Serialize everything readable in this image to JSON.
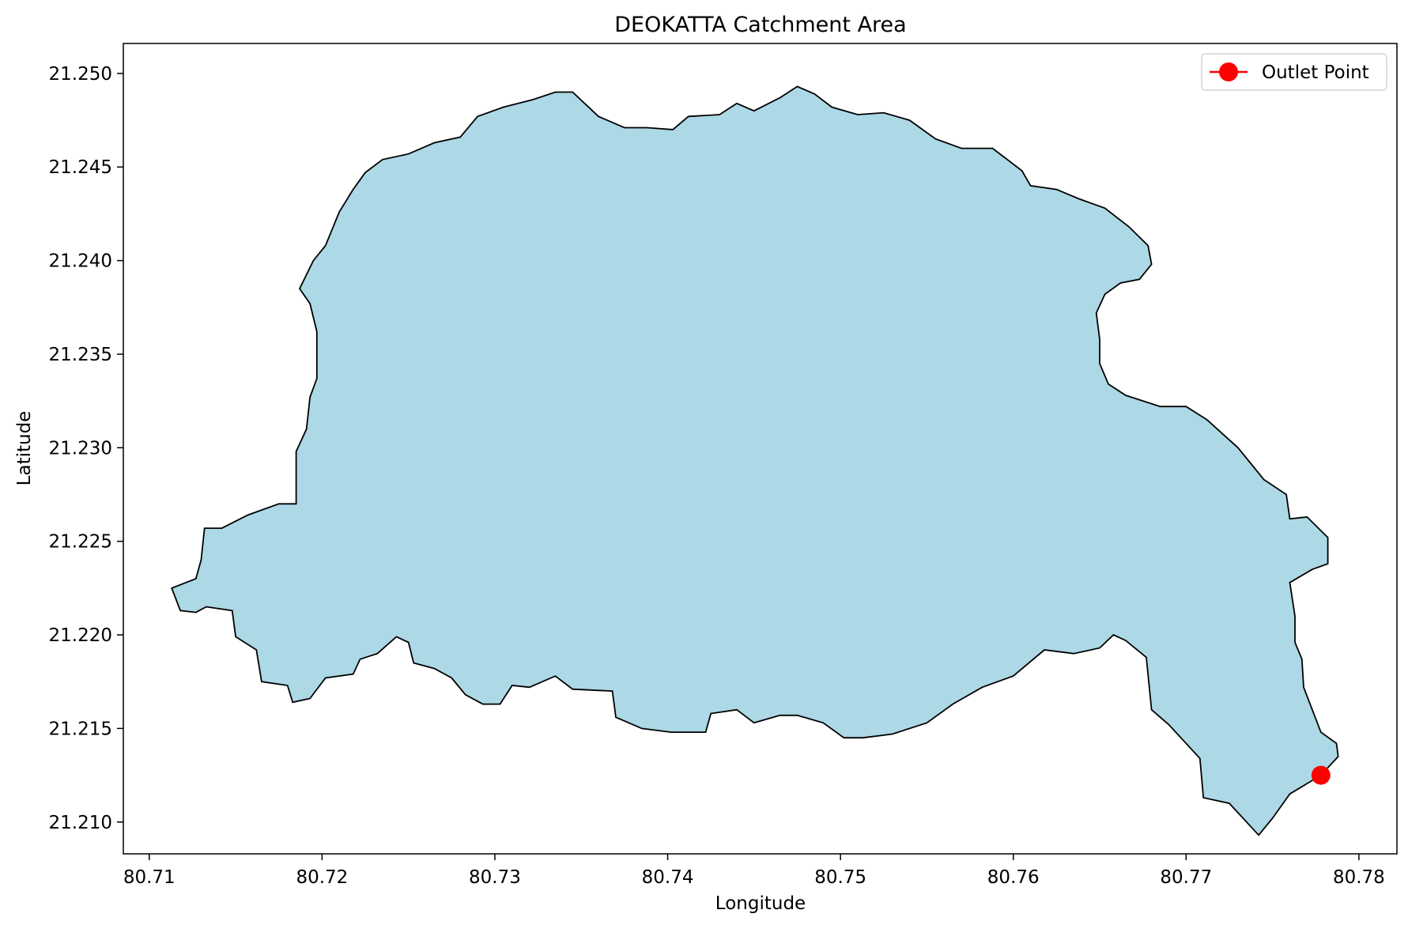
{
  "chart_data": {
    "type": "area",
    "title": "DEOKATTA Catchment Area",
    "xlabel": "Longitude",
    "ylabel": "Latitude",
    "xlim": [
      80.7085,
      80.7822
    ],
    "ylim": [
      21.2083,
      21.2516
    ],
    "xticks": [
      80.71,
      80.72,
      80.73,
      80.74,
      80.75,
      80.76,
      80.77,
      80.78
    ],
    "xtick_labels": [
      "80.71",
      "80.72",
      "80.73",
      "80.74",
      "80.75",
      "80.76",
      "80.77",
      "80.78"
    ],
    "yticks": [
      21.21,
      21.215,
      21.22,
      21.225,
      21.23,
      21.235,
      21.24,
      21.245,
      21.25
    ],
    "ytick_labels": [
      "21.210",
      "21.215",
      "21.220",
      "21.225",
      "21.230",
      "21.235",
      "21.240",
      "21.245",
      "21.250"
    ],
    "grid": false,
    "legend_position": "top-right",
    "series": [
      {
        "kind": "polygon",
        "fill_color": "#add8e6",
        "edge_color": "#000000",
        "points": [
          [
            80.7113,
            21.2225
          ],
          [
            80.7118,
            21.2213
          ],
          [
            80.7127,
            21.2212
          ],
          [
            80.7133,
            21.2215
          ],
          [
            80.7148,
            21.2213
          ],
          [
            80.715,
            21.2199
          ],
          [
            80.7162,
            21.2192
          ],
          [
            80.7165,
            21.2175
          ],
          [
            80.718,
            21.2173
          ],
          [
            80.7183,
            21.2164
          ],
          [
            80.7193,
            21.2166
          ],
          [
            80.7202,
            21.2177
          ],
          [
            80.7218,
            21.2179
          ],
          [
            80.7222,
            21.2187
          ],
          [
            80.7232,
            21.219
          ],
          [
            80.7243,
            21.2199
          ],
          [
            80.725,
            21.2196
          ],
          [
            80.7253,
            21.2185
          ],
          [
            80.7265,
            21.2182
          ],
          [
            80.7275,
            21.2177
          ],
          [
            80.7283,
            21.2168
          ],
          [
            80.7293,
            21.2163
          ],
          [
            80.7303,
            21.2163
          ],
          [
            80.731,
            21.2173
          ],
          [
            80.732,
            21.2172
          ],
          [
            80.7335,
            21.2178
          ],
          [
            80.7345,
            21.2171
          ],
          [
            80.7368,
            21.217
          ],
          [
            80.737,
            21.2156
          ],
          [
            80.7385,
            21.215
          ],
          [
            80.7402,
            21.2148
          ],
          [
            80.7422,
            21.2148
          ],
          [
            80.7425,
            21.2158
          ],
          [
            80.744,
            21.216
          ],
          [
            80.745,
            21.2153
          ],
          [
            80.7465,
            21.2157
          ],
          [
            80.7475,
            21.2157
          ],
          [
            80.749,
            21.2153
          ],
          [
            80.7502,
            21.2145
          ],
          [
            80.7513,
            21.2145
          ],
          [
            80.753,
            21.2147
          ],
          [
            80.755,
            21.2153
          ],
          [
            80.7565,
            21.2163
          ],
          [
            80.7582,
            21.2172
          ],
          [
            80.76,
            21.2178
          ],
          [
            80.7618,
            21.2192
          ],
          [
            80.7635,
            21.219
          ],
          [
            80.765,
            21.2193
          ],
          [
            80.7658,
            21.22
          ],
          [
            80.7665,
            21.2197
          ],
          [
            80.7677,
            21.2188
          ],
          [
            80.768,
            21.216
          ],
          [
            80.769,
            21.2152
          ],
          [
            80.77,
            21.2142
          ],
          [
            80.7708,
            21.2134
          ],
          [
            80.771,
            21.2113
          ],
          [
            80.7725,
            21.211
          ],
          [
            80.7742,
            21.2093
          ],
          [
            80.775,
            21.2102
          ],
          [
            80.776,
            21.2115
          ],
          [
            80.7778,
            21.2125
          ],
          [
            80.7788,
            21.2135
          ],
          [
            80.7787,
            21.2142
          ],
          [
            80.7778,
            21.2148
          ],
          [
            80.7773,
            21.216
          ],
          [
            80.7768,
            21.2172
          ],
          [
            80.7767,
            21.2187
          ],
          [
            80.7763,
            21.2196
          ],
          [
            80.7763,
            21.221
          ],
          [
            80.776,
            21.2228
          ],
          [
            80.7773,
            21.2235
          ],
          [
            80.7782,
            21.2238
          ],
          [
            80.7782,
            21.2252
          ],
          [
            80.777,
            21.2263
          ],
          [
            80.776,
            21.2262
          ],
          [
            80.7758,
            21.2275
          ],
          [
            80.7745,
            21.2283
          ],
          [
            80.773,
            21.23
          ],
          [
            80.7712,
            21.2315
          ],
          [
            80.77,
            21.2322
          ],
          [
            80.7685,
            21.2322
          ],
          [
            80.7665,
            21.2328
          ],
          [
            80.7655,
            21.2334
          ],
          [
            80.765,
            21.2345
          ],
          [
            80.765,
            21.2358
          ],
          [
            80.7648,
            21.2372
          ],
          [
            80.7653,
            21.2382
          ],
          [
            80.7662,
            21.2388
          ],
          [
            80.7673,
            21.239
          ],
          [
            80.768,
            21.2398
          ],
          [
            80.7678,
            21.2408
          ],
          [
            80.7667,
            21.2418
          ],
          [
            80.7653,
            21.2428
          ],
          [
            80.7638,
            21.2433
          ],
          [
            80.7625,
            21.2438
          ],
          [
            80.761,
            21.244
          ],
          [
            80.7605,
            21.2448
          ],
          [
            80.7588,
            21.246
          ],
          [
            80.757,
            21.246
          ],
          [
            80.7555,
            21.2465
          ],
          [
            80.754,
            21.2475
          ],
          [
            80.7525,
            21.2479
          ],
          [
            80.751,
            21.2478
          ],
          [
            80.7495,
            21.2482
          ],
          [
            80.7485,
            21.2489
          ],
          [
            80.7475,
            21.2493
          ],
          [
            80.7465,
            21.2487
          ],
          [
            80.745,
            21.248
          ],
          [
            80.744,
            21.2484
          ],
          [
            80.743,
            21.2478
          ],
          [
            80.7412,
            21.2477
          ],
          [
            80.7403,
            21.247
          ],
          [
            80.7388,
            21.2471
          ],
          [
            80.7375,
            21.2471
          ],
          [
            80.736,
            21.2477
          ],
          [
            80.7345,
            21.249
          ],
          [
            80.7335,
            21.249
          ],
          [
            80.7322,
            21.2486
          ],
          [
            80.7305,
            21.2482
          ],
          [
            80.729,
            21.2477
          ],
          [
            80.728,
            21.2466
          ],
          [
            80.7265,
            21.2463
          ],
          [
            80.725,
            21.2457
          ],
          [
            80.7235,
            21.2454
          ],
          [
            80.7225,
            21.2447
          ],
          [
            80.7218,
            21.2438
          ],
          [
            80.721,
            21.2426
          ],
          [
            80.7202,
            21.2408
          ],
          [
            80.7195,
            21.24
          ],
          [
            80.7187,
            21.2385
          ],
          [
            80.7193,
            21.2377
          ],
          [
            80.7197,
            21.2362
          ],
          [
            80.7197,
            21.2337
          ],
          [
            80.7193,
            21.2327
          ],
          [
            80.7191,
            21.231
          ],
          [
            80.7185,
            21.2298
          ],
          [
            80.7185,
            21.227
          ],
          [
            80.7175,
            21.227
          ],
          [
            80.7157,
            21.2264
          ],
          [
            80.7142,
            21.2257
          ],
          [
            80.7132,
            21.2257
          ],
          [
            80.713,
            21.224
          ],
          [
            80.7127,
            21.223
          ],
          [
            80.7113,
            21.2225
          ]
        ]
      },
      {
        "kind": "point",
        "name": "Outlet Point",
        "color": "#ff0000",
        "x": 80.7778,
        "y": 21.2125
      }
    ]
  }
}
